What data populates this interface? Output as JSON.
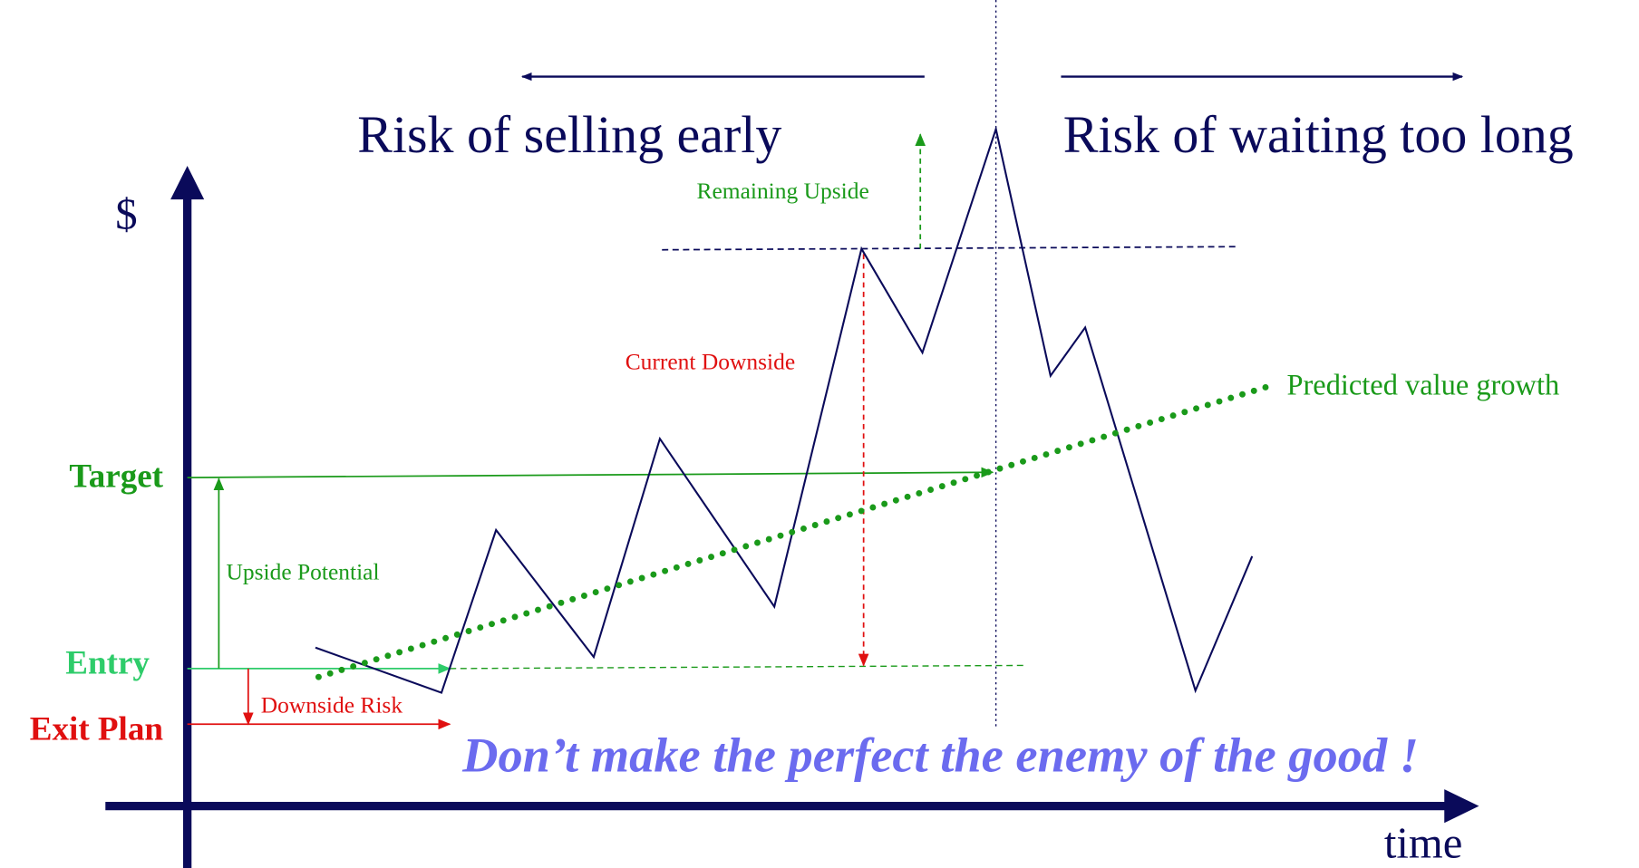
{
  "y_axis_label": "$",
  "x_axis_label": "time",
  "levels": {
    "target": "Target",
    "entry": "Entry",
    "exit": "Exit Plan"
  },
  "annotations": {
    "upside_potential": "Upside Potential",
    "downside_risk": "Downside Risk",
    "current_downside": "Current Downside",
    "remaining_upside": "Remaining Upside",
    "predicted": "Predicted value growth"
  },
  "headers": {
    "left": "Risk of selling early",
    "right": "Risk of waiting too long"
  },
  "slogan": "Don’t make the perfect the enemy of the good !"
}
